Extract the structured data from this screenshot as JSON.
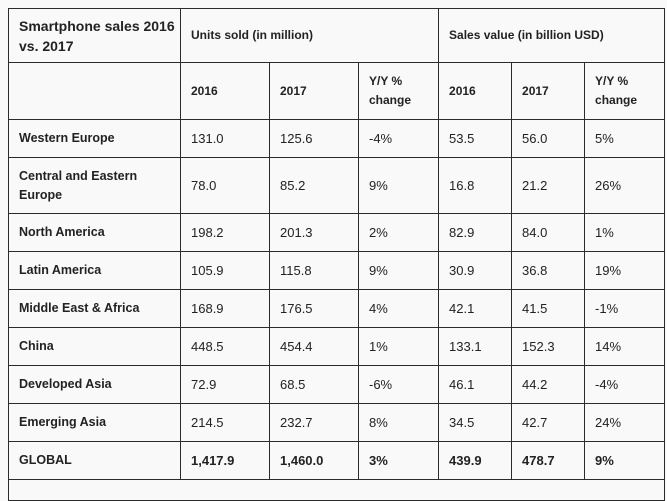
{
  "title": "Smartphone sales 2016 vs. 2017",
  "groups": {
    "units": "Units sold (in million)",
    "value": "Sales value (in billion USD)"
  },
  "sub": {
    "y2016": "2016",
    "y2017": "2017",
    "yoy": "Y/Y % change"
  },
  "rows": [
    {
      "region": "Western Europe",
      "u16": "131.0",
      "u17": "125.6",
      "uc": "-4%",
      "v16": "53.5",
      "v17": "56.0",
      "vc": "5%"
    },
    {
      "region": "Central and Eastern Europe",
      "u16": "78.0",
      "u17": "85.2",
      "uc": "9%",
      "v16": "16.8",
      "v17": "21.2",
      "vc": "26%"
    },
    {
      "region": "North America",
      "u16": "198.2",
      "u17": "201.3",
      "uc": "2%",
      "v16": "82.9",
      "v17": "84.0",
      "vc": "1%"
    },
    {
      "region": "Latin America",
      "u16": "105.9",
      "u17": "115.8",
      "uc": "9%",
      "v16": "30.9",
      "v17": "36.8",
      "vc": "19%"
    },
    {
      "region": "Middle East & Africa",
      "u16": "168.9",
      "u17": "176.5",
      "uc": "4%",
      "v16": "42.1",
      "v17": "41.5",
      "vc": "-1%"
    },
    {
      "region": "China",
      "u16": "448.5",
      "u17": "454.4",
      "uc": "1%",
      "v16": "133.1",
      "v17": "152.3",
      "vc": "14%"
    },
    {
      "region": "Developed Asia",
      "u16": "72.9",
      "u17": "68.5",
      "uc": "-6%",
      "v16": "46.1",
      "v17": "44.2",
      "vc": "-4%"
    },
    {
      "region": "Emerging Asia",
      "u16": "214.5",
      "u17": "232.7",
      "uc": "8%",
      "v16": "34.5",
      "v17": "42.7",
      "vc": "24%"
    },
    {
      "region": "GLOBAL",
      "u16": "1,417.9",
      "u17": "1,460.0",
      "uc": "3%",
      "v16": "439.9",
      "v17": "478.7",
      "vc": "9%"
    }
  ]
}
